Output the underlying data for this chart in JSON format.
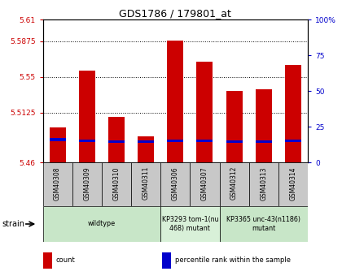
{
  "title": "GDS1786 / 179801_at",
  "samples": [
    "GSM40308",
    "GSM40309",
    "GSM40310",
    "GSM40311",
    "GSM40306",
    "GSM40307",
    "GSM40312",
    "GSM40313",
    "GSM40314"
  ],
  "bar_values": [
    5.497,
    5.556,
    5.508,
    5.487,
    5.588,
    5.566,
    5.535,
    5.537,
    5.562
  ],
  "blue_values": [
    5.484,
    5.483,
    5.482,
    5.482,
    5.483,
    5.483,
    5.482,
    5.482,
    5.483
  ],
  "ylim_left": [
    5.46,
    5.61
  ],
  "ylim_right": [
    0,
    100
  ],
  "yticks_left": [
    5.46,
    5.5125,
    5.55,
    5.5875,
    5.61
  ],
  "yticks_right": [
    0,
    25,
    50,
    75,
    100
  ],
  "bar_color": "#cc0000",
  "blue_color": "#0000cc",
  "bar_width": 0.55,
  "background_color": "#ffffff",
  "plot_bg": "#ffffff",
  "strain_groups": [
    {
      "label": "wildtype",
      "spans": [
        0,
        3
      ],
      "color": "#c8e6c8"
    },
    {
      "label": "KP3293 tom-1(nu\n468) mutant",
      "spans": [
        4,
        5
      ],
      "color": "#d8f0d8"
    },
    {
      "label": "KP3365 unc-43(n1186)\nmutant",
      "spans": [
        6,
        8
      ],
      "color": "#c8e6c8"
    }
  ],
  "left_ytick_color": "#cc0000",
  "right_ytick_color": "#0000cc",
  "legend_items": [
    {
      "label": "count",
      "color": "#cc0000"
    },
    {
      "label": "percentile rank within the sample",
      "color": "#0000cc"
    }
  ],
  "sample_box_color": "#c8c8c8"
}
